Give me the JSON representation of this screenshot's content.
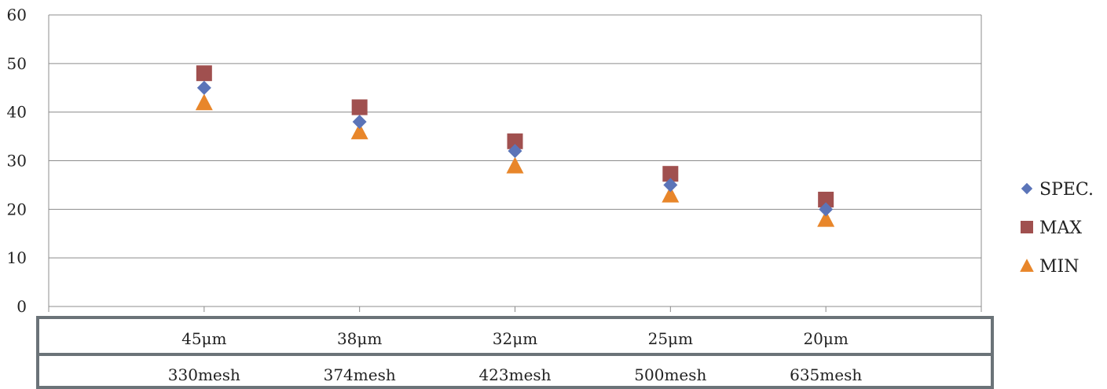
{
  "chart_data": {
    "type": "scatter",
    "categories": [
      "45μm",
      "38μm",
      "32μm",
      "25μm",
      "20μm"
    ],
    "categories_row2": [
      "330mesh",
      "374mesh",
      "423mesh",
      "500mesh",
      "635mesh"
    ],
    "ylim": [
      0,
      60
    ],
    "yticks": [
      0,
      10,
      20,
      30,
      40,
      50,
      60
    ],
    "grid": true,
    "legend_position": "right",
    "series": [
      {
        "name": "SPEC.",
        "marker": "diamond",
        "color": "#5B74B8",
        "values": [
          45,
          38,
          32,
          25,
          20
        ]
      },
      {
        "name": "MAX",
        "marker": "square",
        "color": "#A0504F",
        "values": [
          48,
          41,
          34,
          27.3,
          22
        ]
      },
      {
        "name": "MIN",
        "marker": "triangle",
        "color": "#E8862A",
        "values": [
          42,
          36,
          29,
          23,
          18
        ]
      }
    ]
  }
}
